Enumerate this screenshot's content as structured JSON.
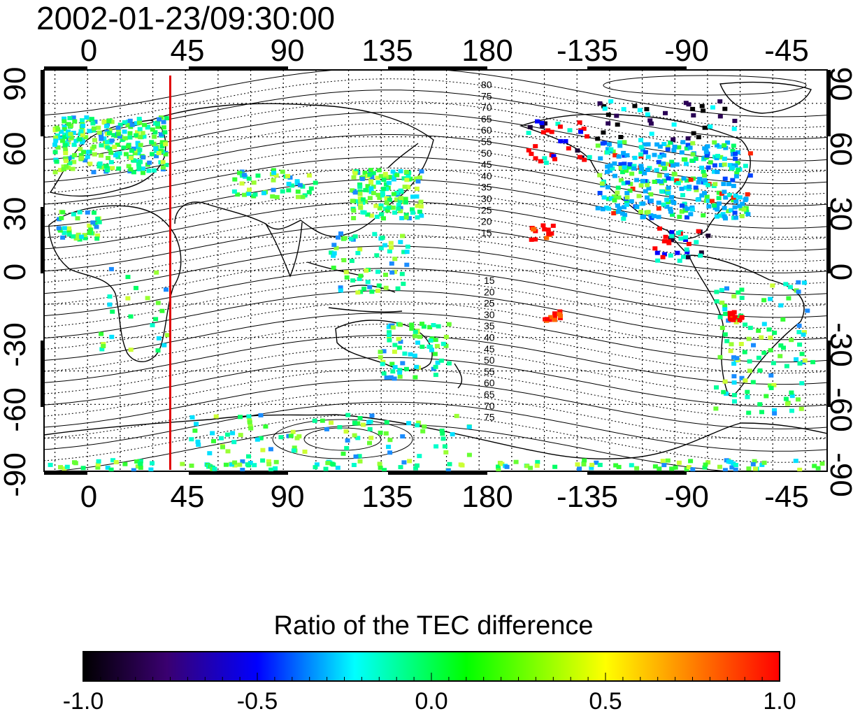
{
  "title": "2002-01-23/09:30:00",
  "lon_ticks": [
    "0",
    "45",
    "90",
    "135",
    "180",
    "-135",
    "-90",
    "-45"
  ],
  "lat_ticks": [
    "90",
    "60",
    "30",
    "0",
    "-30",
    "-60",
    "-90"
  ],
  "contour_labels_north": [
    "80",
    "75",
    "70",
    "65",
    "60",
    "55",
    "50",
    "45",
    "40",
    "35",
    "30",
    "25",
    "20",
    "15"
  ],
  "contour_labels_south": [
    "15",
    "20",
    "25",
    "30",
    "35",
    "40",
    "45",
    "50",
    "55",
    "60",
    "65",
    "70",
    "75"
  ],
  "colorbar": {
    "title": "Ratio of the TEC difference",
    "labels": [
      "-1.0",
      "-0.5",
      "0.0",
      "0.5",
      "1.0"
    ],
    "colors": [
      "#000000",
      "#3a0070",
      "#0000ff",
      "#00ffff",
      "#00ff00",
      "#ffff00",
      "#ff0000"
    ]
  },
  "marker": {
    "longitude": 38,
    "color": "#e00000"
  }
}
